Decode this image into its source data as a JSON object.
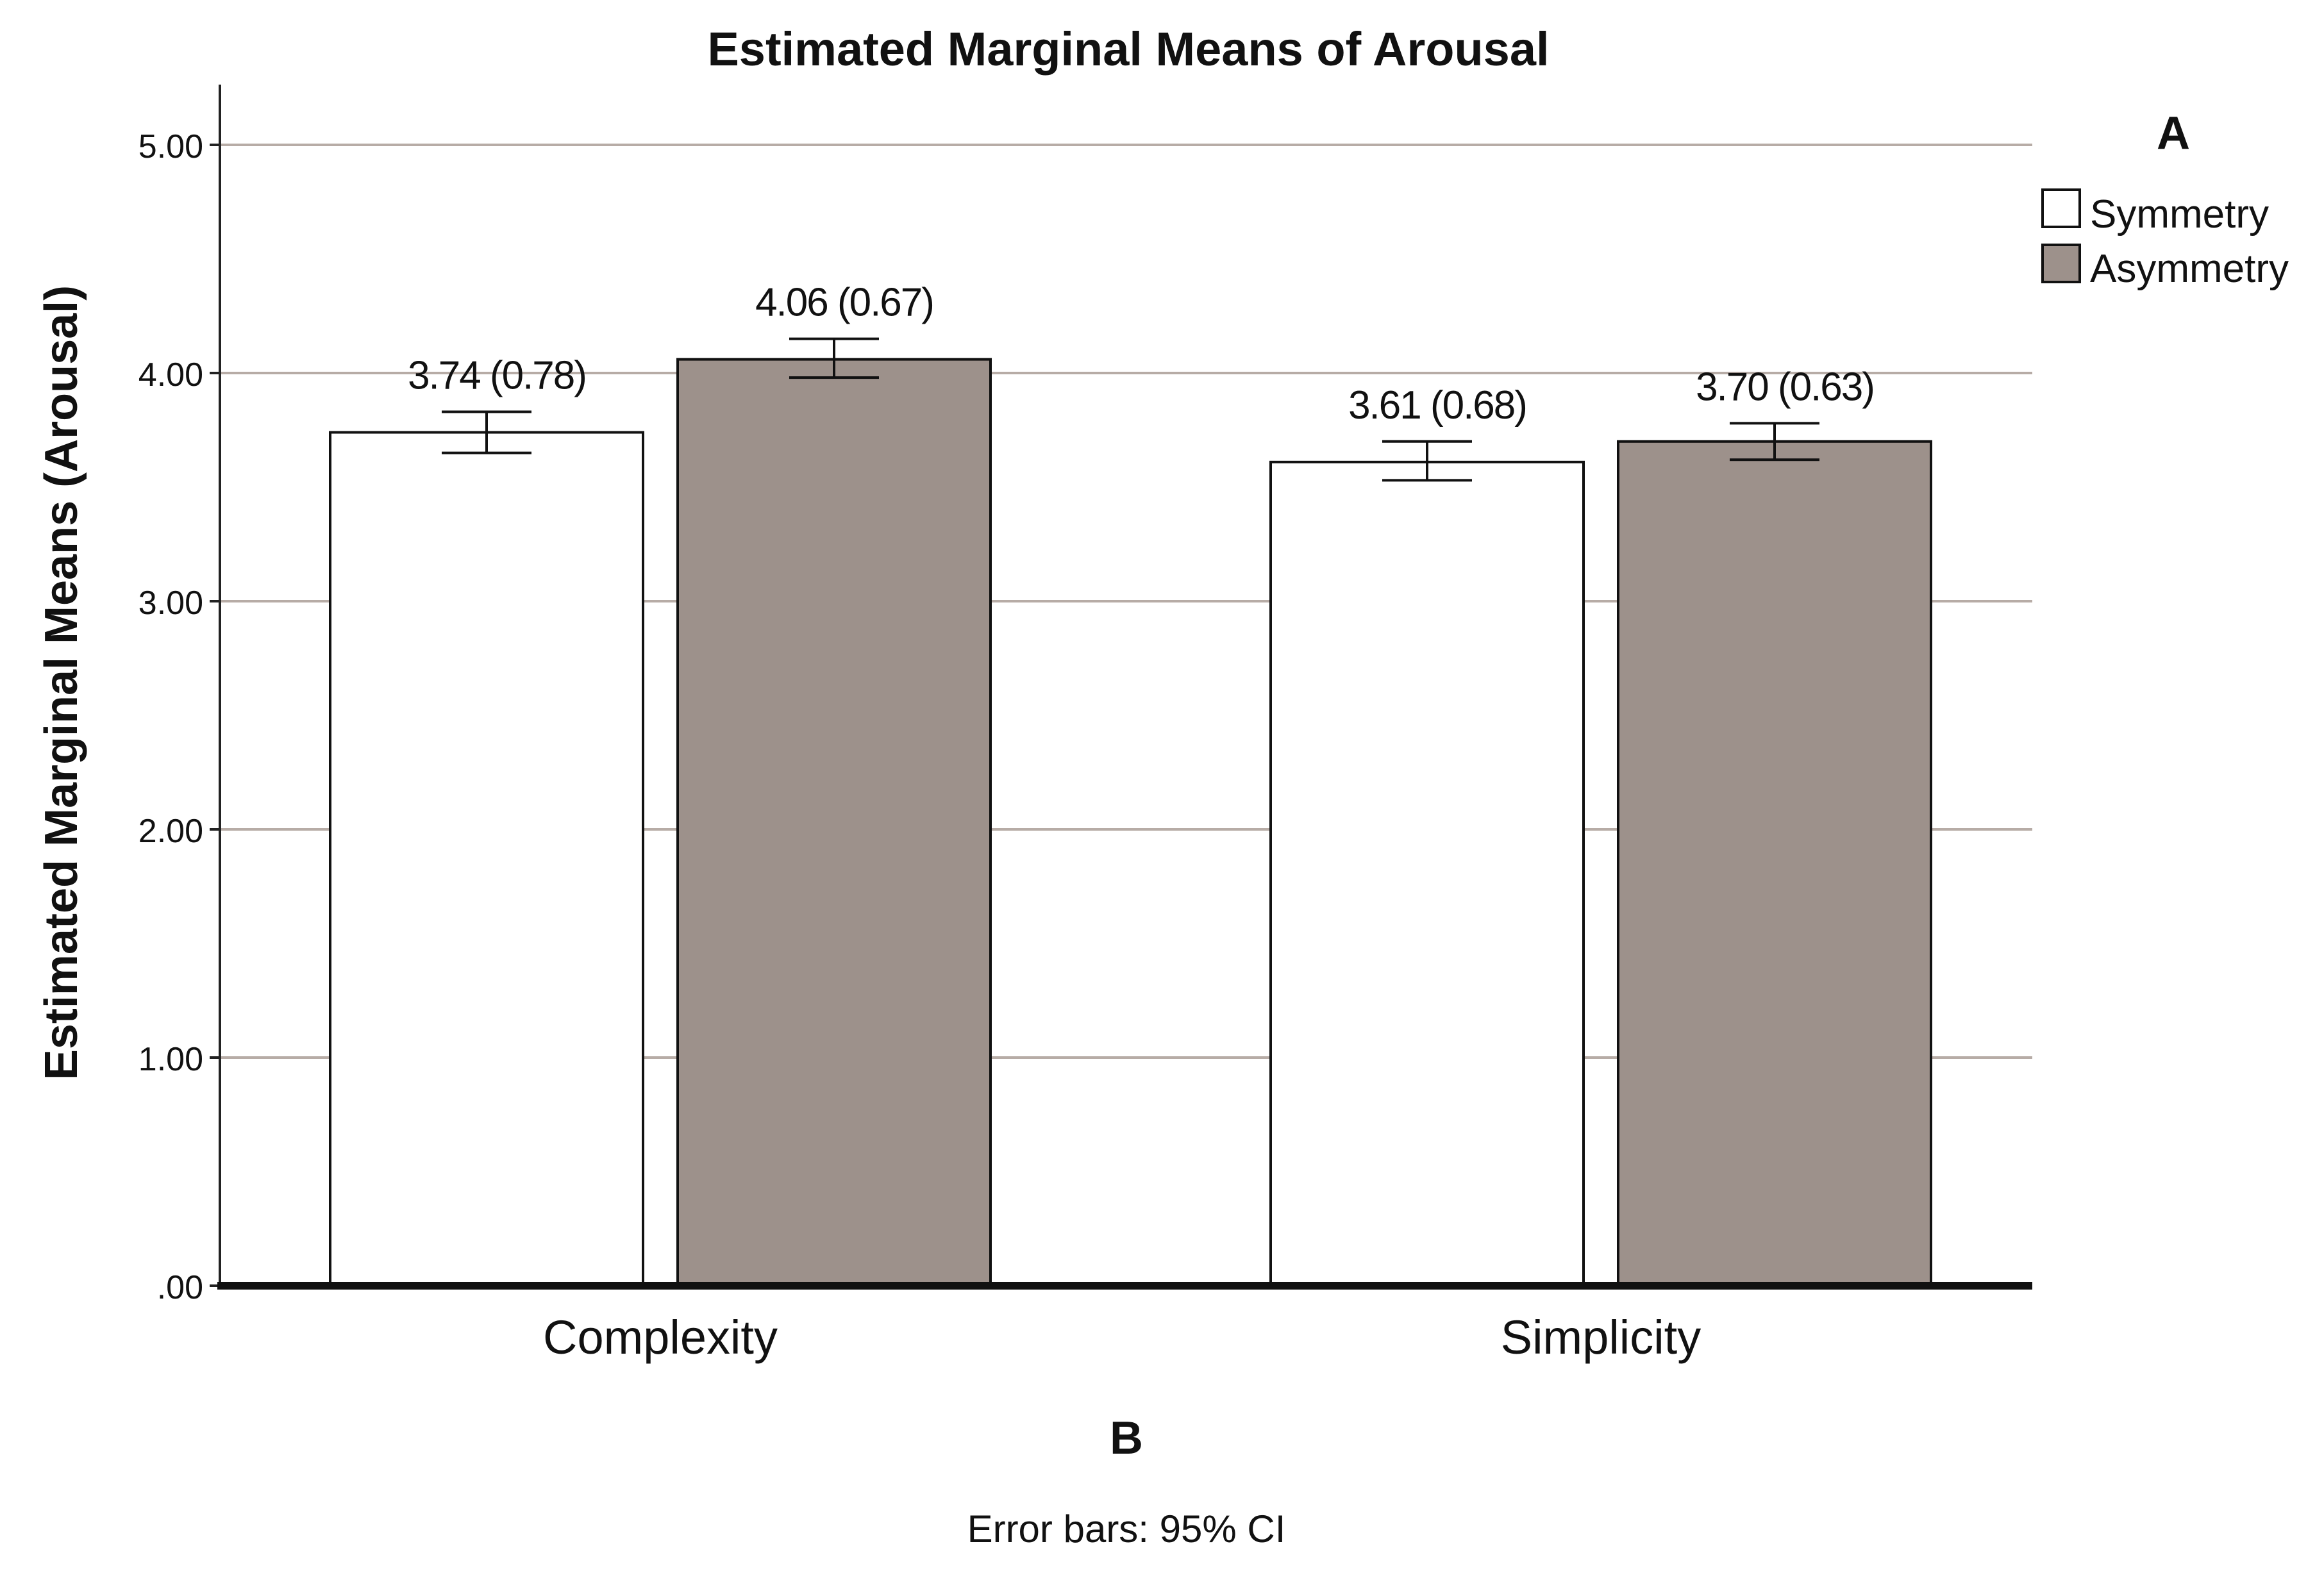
{
  "figure": {
    "panel_a_letter": "A",
    "panel_b_letter": "B",
    "footnote": "Error bars: 95% CI"
  },
  "legend": {
    "items": [
      {
        "label": "Symmetry",
        "color": "#ffffff"
      },
      {
        "label": "Asymmetry",
        "color": "#9d918b"
      }
    ]
  },
  "chart_data": {
    "type": "bar",
    "title": "Estimated Marginal Means of Arousal",
    "xlabel": "",
    "ylabel": "Estimated Marginal Means (Arousal)",
    "ylim": [
      0,
      5.25
    ],
    "yticks": [
      0,
      1,
      2,
      3,
      4,
      5
    ],
    "ytick_labels": [
      ".00",
      "1.00",
      "2.00",
      "3.00",
      "4.00",
      "5.00"
    ],
    "grid": true,
    "legend_position": "top-right",
    "categories": [
      "Complexity",
      "Simplicity"
    ],
    "series": [
      {
        "name": "Symmetry",
        "color": "#ffffff",
        "values": [
          3.74,
          3.61
        ],
        "ci_low": [
          3.65,
          3.53
        ],
        "ci_high": [
          3.83,
          3.7
        ],
        "labels": [
          "3.74 (0.78)",
          "3.61 (0.68)"
        ]
      },
      {
        "name": "Asymmetry",
        "color": "#9d918b",
        "values": [
          4.06,
          3.7
        ],
        "ci_low": [
          3.98,
          3.62
        ],
        "ci_high": [
          4.15,
          3.78
        ],
        "labels": [
          "4.06 (0.67)",
          "3.70 (0.63)"
        ]
      }
    ],
    "error_bars": "95% CI"
  }
}
